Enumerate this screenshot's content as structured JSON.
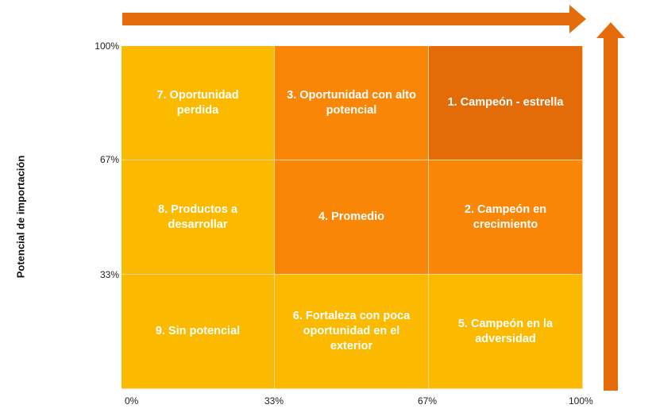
{
  "diagram": {
    "y_axis_label": "Potencial de importación",
    "y_ticks": [
      "100%",
      "67%",
      "33%"
    ],
    "x_ticks": [
      "0%",
      "33%",
      "67%",
      "100%"
    ],
    "colors": {
      "arrow": "#e46c0a",
      "yellow": "#fbb900",
      "orange": "#fa8607",
      "dark_orange": "#e36c09"
    },
    "cells": [
      {
        "label": "7. Oportunidad perdida",
        "lines": [
          "7. Oportunidad",
          "perdida"
        ],
        "color": "#fbb900"
      },
      {
        "label": "3. Oportunidad con alto potencial",
        "lines": [
          "3. Oportunidad con alto",
          "potencial"
        ],
        "color": "#fa8607"
      },
      {
        "label": "1. Campeón - estrella",
        "lines": [
          "1. Campeón - estrella"
        ],
        "color": "#e36c09"
      },
      {
        "label": "8. Productos a desarrollar",
        "lines": [
          "8. Productos a desarrollar"
        ],
        "color": "#fbb900"
      },
      {
        "label": "4. Promedio",
        "lines": [
          "4. Promedio"
        ],
        "color": "#fa8607"
      },
      {
        "label": "2. Campeón en crecimiento",
        "lines": [
          "2. Campeón en",
          "crecimiento"
        ],
        "color": "#fa8607"
      },
      {
        "label": "9. Sin potencial",
        "lines": [
          "9. Sin potencial"
        ],
        "color": "#fbb900"
      },
      {
        "label": "6. Fortaleza con poca oportunidad en el exterior",
        "lines": [
          "6. Fortaleza con poca",
          "oportunidad en el",
          "exterior"
        ],
        "color": "#fbb900"
      },
      {
        "label": "5. Campeón en la adversidad",
        "lines": [
          "5. Campeón en la",
          "adversidad"
        ],
        "color": "#fbb900"
      }
    ]
  }
}
